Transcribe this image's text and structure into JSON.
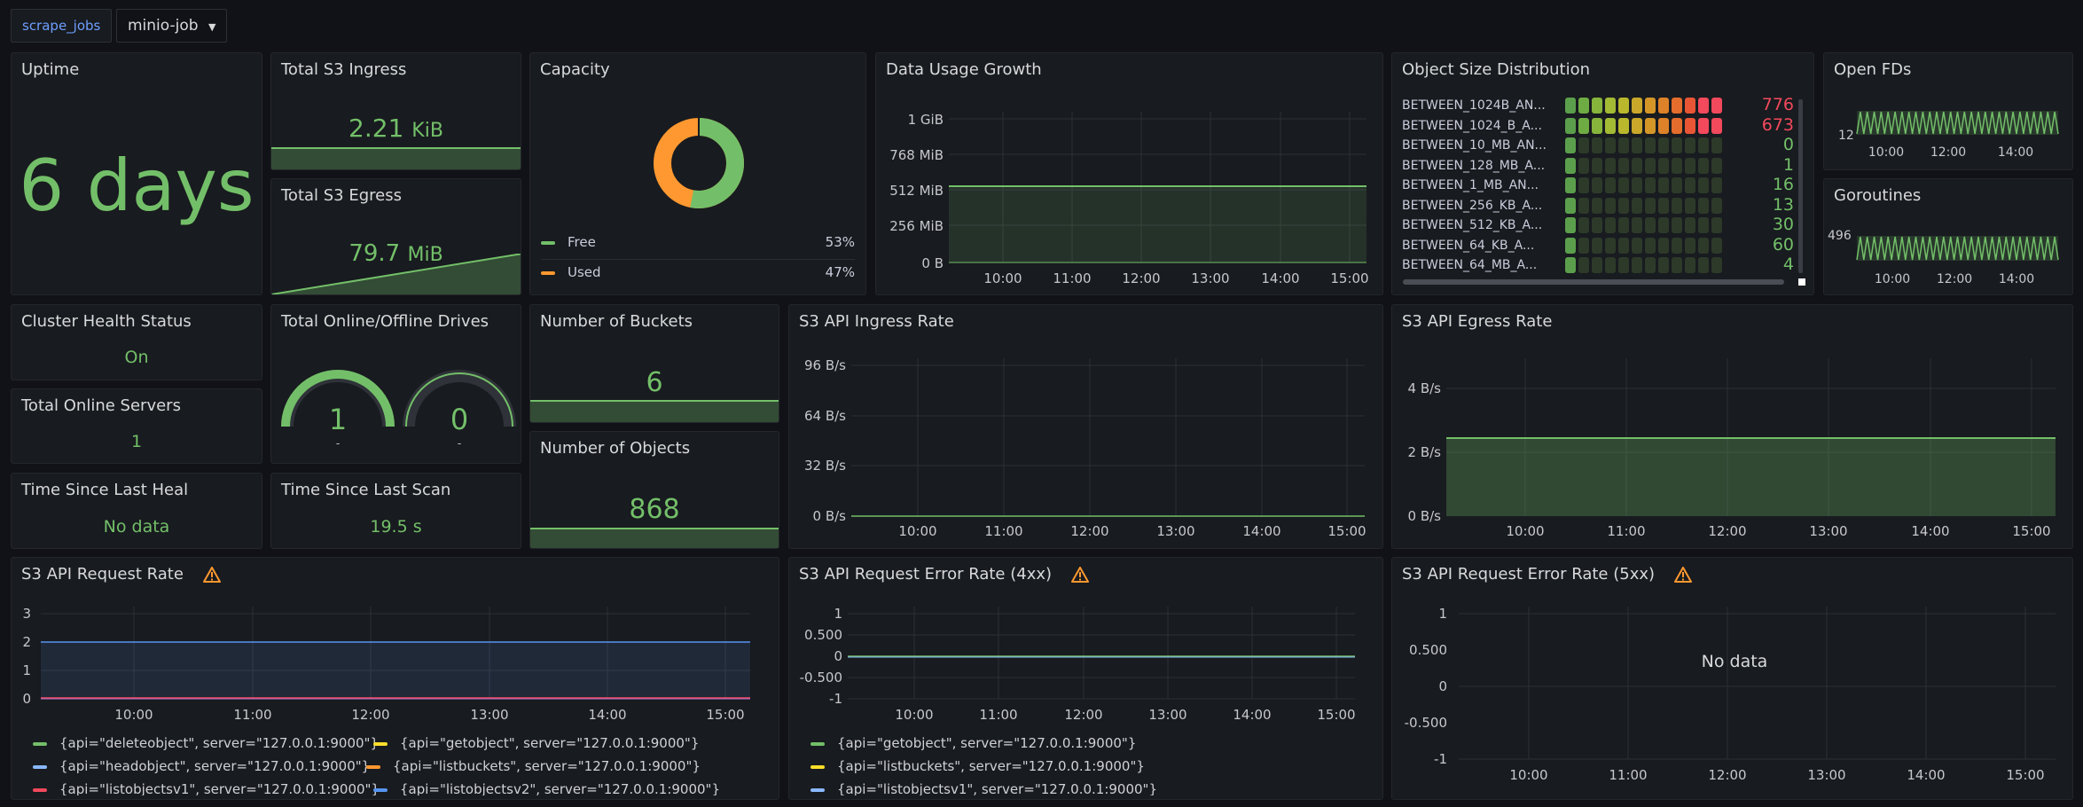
{
  "toolbar": {
    "var_label": "scrape_jobs",
    "var_value": "minio-job"
  },
  "uptime": {
    "title": "Uptime",
    "value": "6 days"
  },
  "ingress_total": {
    "title": "Total S3 Ingress",
    "value": "2.21",
    "unit": "KiB"
  },
  "egress_total": {
    "title": "Total S3 Egress",
    "value": "79.7",
    "unit": "MiB"
  },
  "capacity": {
    "title": "Capacity",
    "legend": [
      {
        "name": "Free",
        "pct": "53%",
        "color": "#73bf69"
      },
      {
        "name": "Used",
        "pct": "47%",
        "color": "#ff9830"
      }
    ]
  },
  "data_usage": {
    "title": "Data Usage Growth",
    "y_ticks": [
      "1 GiB",
      "768 MiB",
      "512 MiB",
      "256 MiB",
      "0 B"
    ],
    "x_ticks": [
      "10:00",
      "11:00",
      "12:00",
      "13:00",
      "14:00",
      "15:00"
    ]
  },
  "object_size": {
    "title": "Object Size Distribution",
    "rows": [
      {
        "label": "BETWEEN_1024B_AN...",
        "value": "776",
        "color": "#f2495c"
      },
      {
        "label": "BETWEEN_1024_B_A...",
        "value": "673",
        "color": "#f2495c"
      },
      {
        "label": "BETWEEN_10_MB_AN...",
        "value": "0",
        "color": "#73bf69"
      },
      {
        "label": "BETWEEN_128_MB_A...",
        "value": "1",
        "color": "#73bf69"
      },
      {
        "label": "BETWEEN_1_MB_AN...",
        "value": "16",
        "color": "#73bf69"
      },
      {
        "label": "BETWEEN_256_KB_A...",
        "value": "13",
        "color": "#73bf69"
      },
      {
        "label": "BETWEEN_512_KB_A...",
        "value": "30",
        "color": "#73bf69"
      },
      {
        "label": "BETWEEN_64_KB_A...",
        "value": "60",
        "color": "#73bf69"
      },
      {
        "label": "BETWEEN_64_MB_A...",
        "value": "4",
        "color": "#73bf69"
      }
    ]
  },
  "open_fds": {
    "title": "Open FDs",
    "y_tick": "12",
    "x_ticks": [
      "10:00",
      "12:00",
      "14:00"
    ]
  },
  "goroutines": {
    "title": "Goroutines",
    "y_tick": "496",
    "x_ticks": [
      "10:00",
      "12:00",
      "14:00"
    ]
  },
  "cluster_health": {
    "title": "Cluster Health Status",
    "value": "On"
  },
  "online_servers": {
    "title": "Total Online Servers",
    "value": "1"
  },
  "last_heal": {
    "title": "Time Since Last Heal",
    "value": "No data"
  },
  "drives": {
    "title": "Total Online/Offline Drives",
    "online": "1",
    "offline": "0",
    "online_sub": "-",
    "offline_sub": "-"
  },
  "last_scan": {
    "title": "Time Since Last Scan",
    "value": "19.5 s"
  },
  "buckets": {
    "title": "Number of Buckets",
    "value": "6"
  },
  "objects": {
    "title": "Number of Objects",
    "value": "868"
  },
  "ingress_rate": {
    "title": "S3 API Ingress Rate",
    "y_ticks": [
      "96 B/s",
      "64 B/s",
      "32 B/s",
      "0 B/s"
    ],
    "x_ticks": [
      "10:00",
      "11:00",
      "12:00",
      "13:00",
      "14:00",
      "15:00"
    ]
  },
  "egress_rate": {
    "title": "S3 API Egress Rate",
    "y_ticks": [
      "4 B/s",
      "2 B/s",
      "0 B/s"
    ],
    "x_ticks": [
      "10:00",
      "11:00",
      "12:00",
      "13:00",
      "14:00",
      "15:00"
    ]
  },
  "request_rate": {
    "title": "S3 API Request Rate",
    "y_ticks": [
      "3",
      "2",
      "1",
      "0"
    ],
    "x_ticks": [
      "10:00",
      "11:00",
      "12:00",
      "13:00",
      "14:00",
      "15:00"
    ],
    "legend": [
      {
        "label": "{api=\"deleteobject\", server=\"127.0.0.1:9000\"}",
        "color": "#73bf69"
      },
      {
        "label": "{api=\"getobject\", server=\"127.0.0.1:9000\"}",
        "color": "#fade2a"
      },
      {
        "label": "{api=\"headobject\", server=\"127.0.0.1:9000\"}",
        "color": "#8ab8ff"
      },
      {
        "label": "{api=\"listbuckets\", server=\"127.0.0.1:9000\"}",
        "color": "#ff9830"
      },
      {
        "label": "{api=\"listobjectsv1\", server=\"127.0.0.1:9000\"}",
        "color": "#f2495c"
      },
      {
        "label": "{api=\"listobjectsv2\", server=\"127.0.0.1:9000\"}",
        "color": "#5794f2"
      }
    ]
  },
  "error_4xx": {
    "title": "S3 API Request Error Rate (4xx)",
    "y_ticks": [
      "1",
      "0.500",
      "0",
      "-0.500",
      "-1"
    ],
    "x_ticks": [
      "10:00",
      "11:00",
      "12:00",
      "13:00",
      "14:00",
      "15:00"
    ],
    "legend": [
      {
        "label": "{api=\"getobject\", server=\"127.0.0.1:9000\"}",
        "color": "#73bf69"
      },
      {
        "label": "{api=\"listbuckets\", server=\"127.0.0.1:9000\"}",
        "color": "#fade2a"
      },
      {
        "label": "{api=\"listobjectsv1\", server=\"127.0.0.1:9000\"}",
        "color": "#8ab8ff"
      }
    ]
  },
  "error_5xx": {
    "title": "S3 API Request Error Rate (5xx)",
    "no_data": "No data",
    "y_ticks": [
      "1",
      "0.500",
      "0",
      "-0.500",
      "-1"
    ],
    "x_ticks": [
      "10:00",
      "11:00",
      "12:00",
      "13:00",
      "14:00",
      "15:00"
    ]
  }
}
